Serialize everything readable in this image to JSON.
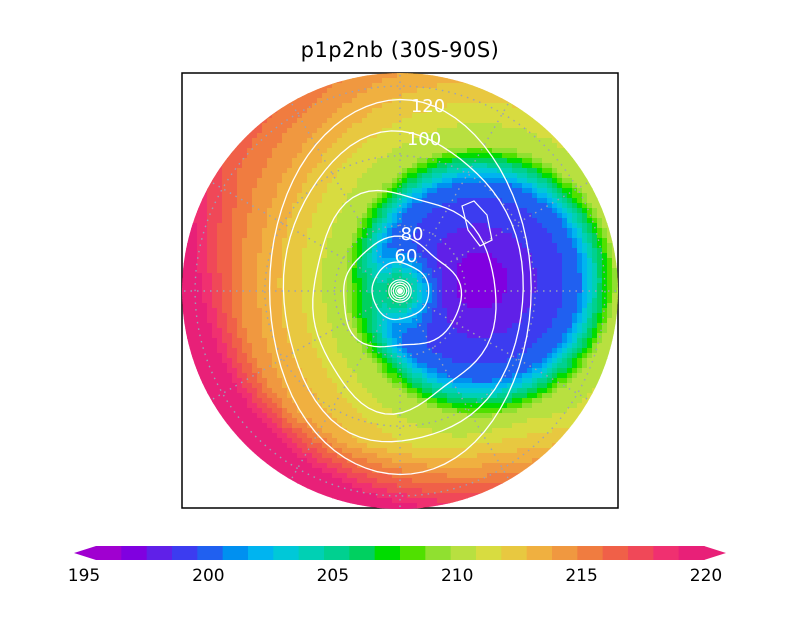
{
  "chart_data": {
    "type": "heatmap",
    "projection": "south polar stereographic",
    "title": "p1p2nb (30S-90S)",
    "colorbar": {
      "min": 195,
      "max": 220,
      "step": 1,
      "tick_labels": [
        "195",
        "200",
        "205",
        "210",
        "215",
        "220"
      ],
      "extends": "both",
      "colors": [
        "#a000d0",
        "#8000e0",
        "#6020e8",
        "#3c3cf0",
        "#2060f0",
        "#0090f0",
        "#00b4f0",
        "#00c8d8",
        "#00d0b4",
        "#00d090",
        "#00d060",
        "#00dc00",
        "#50e000",
        "#90e030",
        "#b8e040",
        "#d8dc40",
        "#e8c840",
        "#f0b040",
        "#f09840",
        "#f07c40",
        "#f06048",
        "#f04858",
        "#f03070",
        "#e82078"
      ]
    },
    "contour_labels": [
      "120",
      "100",
      "80",
      "60"
    ],
    "field_summary": {
      "pole_value_approx": 205,
      "vortex_minimum_approx": 196,
      "collar_maximum_approx": 209,
      "outer_rim_approx": 213,
      "southwest_sector_rim_approx": 219
    }
  }
}
